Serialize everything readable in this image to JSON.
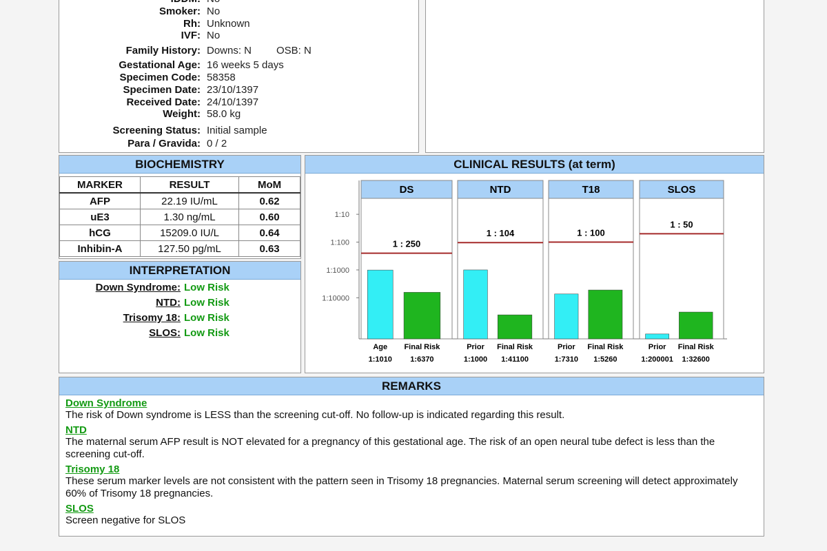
{
  "patient_info": [
    {
      "label": "IDDM:",
      "value": "No"
    },
    {
      "label": "Smoker:",
      "value": "No"
    },
    {
      "label": "Rh:",
      "value": "Unknown"
    },
    {
      "label": "IVF:",
      "value": "No"
    },
    {
      "label": "Family History:",
      "value": "Downs: N",
      "extra": "OSB: N"
    },
    {
      "label": "Gestational Age:",
      "value": "16 weeks 5 days"
    },
    {
      "label": "Specimen Code:",
      "value": "58358"
    },
    {
      "label": "Specimen Date:",
      "value": "23/10/1397"
    },
    {
      "label": "Received Date:",
      "value": "24/10/1397"
    },
    {
      "label": "Weight:",
      "value": "58.0 kg"
    },
    {
      "label": "Screening Status:",
      "value": "Initial sample"
    },
    {
      "label": "Para / Gravida:",
      "value": "0 / 2"
    }
  ],
  "biochemistry": {
    "title": "BIOCHEMISTRY",
    "headers": [
      "MARKER",
      "RESULT",
      "MoM"
    ],
    "rows": [
      [
        "AFP",
        "22.19 IU/mL",
        "0.62"
      ],
      [
        "uE3",
        "1.30 ng/mL",
        "0.60"
      ],
      [
        "hCG",
        "15209.0 IU/L",
        "0.64"
      ],
      [
        "Inhibin-A",
        "127.50 pg/mL",
        "0.63"
      ]
    ]
  },
  "interpretation": {
    "title": "INTERPRETATION",
    "items": [
      {
        "label": "Down Syndrome:",
        "value": "Low Risk"
      },
      {
        "label": "NTD:",
        "value": "Low Risk"
      },
      {
        "label": "Trisomy 18:",
        "value": "Low Risk"
      },
      {
        "label": "SLOS:",
        "value": "Low Risk"
      }
    ]
  },
  "chart_data": {
    "type": "bar",
    "title": "CLINICAL RESULTS (at term)",
    "log_scale": true,
    "ylim": [
      3,
      300000
    ],
    "yticks": [
      {
        "value": 10,
        "label": "1:10"
      },
      {
        "value": 100,
        "label": "1:100"
      },
      {
        "value": 1000,
        "label": "1:1000"
      },
      {
        "value": 10000,
        "label": "1:10000"
      }
    ],
    "prior_color": "#33eef5",
    "final_color": "#1fb51f",
    "cutoff_color": "#a52a2a",
    "panels": [
      {
        "title": "DS",
        "cutoff": 250,
        "cutoff_label": "1 : 250",
        "bars": [
          {
            "label": "Age",
            "value": 1010,
            "value_label": "1:1010"
          },
          {
            "label": "Final Risk",
            "value": 6370,
            "value_label": "1:6370"
          }
        ]
      },
      {
        "title": "NTD",
        "cutoff": 104,
        "cutoff_label": "1 : 104",
        "bars": [
          {
            "label": "Prior",
            "value": 1000,
            "value_label": "1:1000"
          },
          {
            "label": "Final Risk",
            "value": 41100,
            "value_label": "1:41100"
          }
        ]
      },
      {
        "title": "T18",
        "cutoff": 100,
        "cutoff_label": "1 : 100",
        "bars": [
          {
            "label": "Prior",
            "value": 7310,
            "value_label": "1:7310"
          },
          {
            "label": "Final Risk",
            "value": 5260,
            "value_label": "1:5260"
          }
        ]
      },
      {
        "title": "SLOS",
        "cutoff": 50,
        "cutoff_label": "1 : 50",
        "bars": [
          {
            "label": "Prior",
            "value": 200001,
            "value_label": "1:200001"
          },
          {
            "label": "Final Risk",
            "value": 32600,
            "value_label": "1:32600"
          }
        ]
      }
    ]
  },
  "remarks": {
    "title": "REMARKS",
    "sections": [
      {
        "heading": "Down Syndrome",
        "text": "The risk of Down syndrome is LESS than the screening cut-off. No follow-up is indicated regarding this result."
      },
      {
        "heading": "NTD",
        "text": "The maternal serum AFP result is NOT elevated for a pregnancy of this gestational age.  The risk of an open neural tube defect is less than the screening cut-off."
      },
      {
        "heading": "Trisomy 18",
        "text": "These serum marker levels are not consistent with the pattern seen in Trisomy 18 pregnancies. Maternal serum screening will detect approximately 60% of Trisomy 18 pregnancies."
      },
      {
        "heading": "SLOS",
        "text": "Screen negative for SLOS"
      }
    ]
  }
}
